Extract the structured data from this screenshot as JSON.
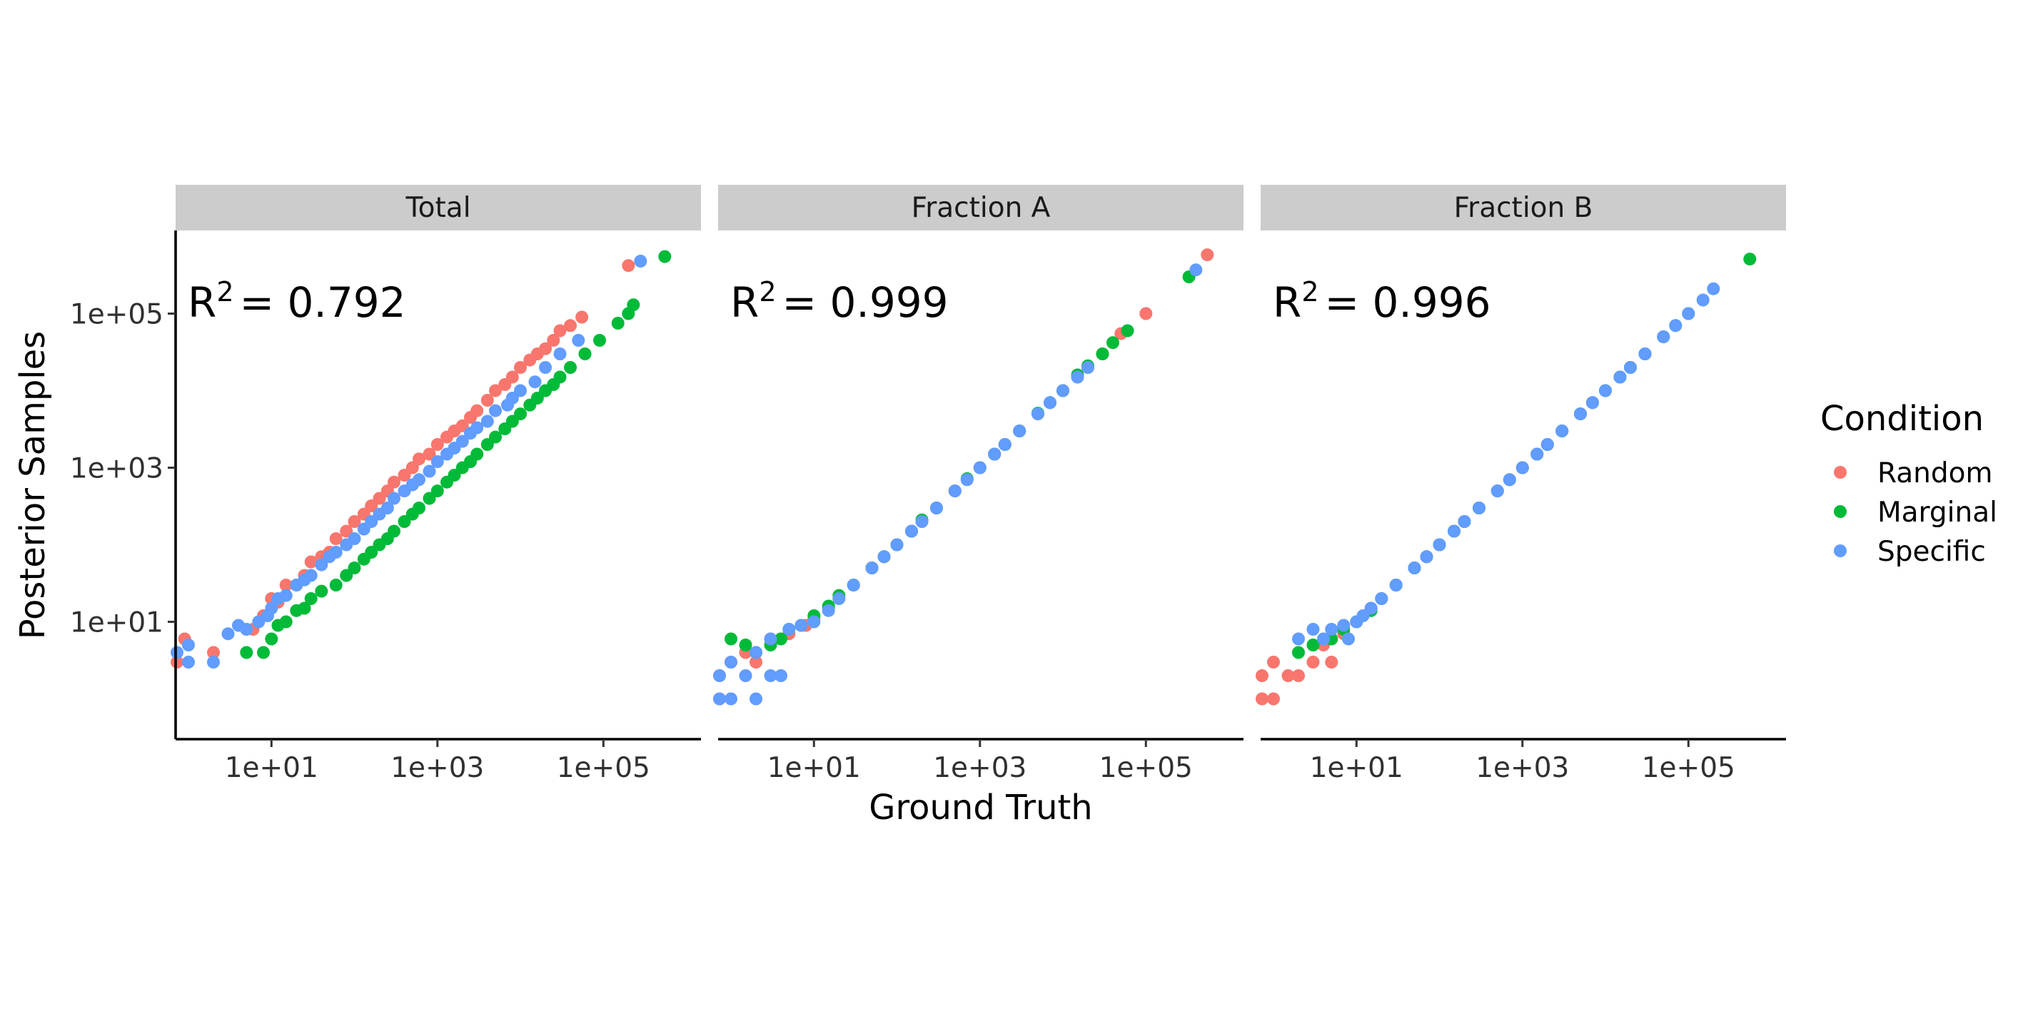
{
  "chart_data": {
    "type": "scatter",
    "facet_by": "Fraction",
    "x_scale": "log10",
    "y_scale": "log10",
    "xlabel": "Ground Truth",
    "ylabel": "Posterior Samples",
    "xlim": [
      0.7,
      1500000
    ],
    "ylim": [
      0.3,
      1200000
    ],
    "x_ticks": [
      10,
      1000,
      100000
    ],
    "x_tick_labels": [
      "1e+01",
      "1e+03",
      "1e+05"
    ],
    "y_ticks": [
      10,
      1000,
      100000
    ],
    "y_tick_labels": [
      "1e+01",
      "1e+03",
      "1e+05"
    ],
    "grid": false,
    "legend": {
      "title": "Condition",
      "position": "right",
      "entries": [
        {
          "label": "Random",
          "color": "#F8766D"
        },
        {
          "label": "Marginal",
          "color": "#00BA38"
        },
        {
          "label": "Specific",
          "color": "#619CFF"
        }
      ]
    },
    "panels": [
      {
        "title": "Total",
        "r2_label": "R",
        "r2_sup": "2",
        "r2_value": "= 0.792",
        "series": [
          {
            "name": "Random",
            "color": "#F8766D",
            "x": [
              0.7,
              0.9,
              2,
              6,
              8,
              10,
              12,
              15,
              20,
              25,
              30,
              40,
              50,
              60,
              80,
              100,
              130,
              160,
              200,
              250,
              300,
              400,
              500,
              600,
              800,
              1000,
              1300,
              1600,
              2000,
              2500,
              3000,
              4000,
              5000,
              6500,
              8000,
              10000,
              13000,
              16000,
              20000,
              25000,
              30000,
              40000,
              55000,
              200000
            ],
            "y": [
              3,
              6,
              4,
              8,
              12,
              20,
              18,
              30,
              30,
              40,
              60,
              70,
              80,
              120,
              150,
              200,
              250,
              320,
              400,
              500,
              650,
              800,
              1000,
              1300,
              1500,
              2000,
              2500,
              3000,
              3500,
              4500,
              5500,
              7500,
              10000,
              12000,
              15000,
              20000,
              25000,
              30000,
              35000,
              45000,
              60000,
              70000,
              90000,
              420000
            ]
          },
          {
            "name": "Marginal",
            "color": "#00BA38",
            "x": [
              5,
              8,
              10,
              12,
              15,
              20,
              25,
              30,
              40,
              60,
              80,
              100,
              130,
              160,
              200,
              250,
              300,
              400,
              500,
              600,
              800,
              1000,
              1300,
              1600,
              2000,
              2500,
              3000,
              4000,
              5000,
              6500,
              8000,
              10000,
              13000,
              16000,
              20000,
              25000,
              30000,
              40000,
              60000,
              90000,
              150000,
              200000,
              230000,
              550000
            ],
            "y": [
              4,
              4,
              6,
              9,
              10,
              14,
              15,
              20,
              25,
              30,
              40,
              50,
              65,
              80,
              100,
              120,
              150,
              200,
              250,
              300,
              400,
              500,
              650,
              800,
              1000,
              1200,
              1500,
              2000,
              2500,
              3200,
              4000,
              5000,
              6500,
              8000,
              10000,
              12000,
              15000,
              20000,
              30000,
              45000,
              75000,
              100000,
              130000,
              550000
            ]
          },
          {
            "name": "Specific",
            "color": "#619CFF",
            "x": [
              0.7,
              1,
              1,
              2,
              3,
              4,
              5,
              7,
              9,
              10,
              12,
              15,
              20,
              25,
              30,
              40,
              50,
              60,
              80,
              100,
              130,
              160,
              200,
              250,
              300,
              400,
              500,
              600,
              800,
              1000,
              1300,
              1600,
              2000,
              2500,
              3000,
              4000,
              5000,
              7000,
              8000,
              10000,
              15000,
              20000,
              30000,
              50000,
              280000
            ],
            "y": [
              4,
              3,
              5,
              3,
              7,
              9,
              8,
              10,
              12,
              15,
              20,
              22,
              30,
              35,
              40,
              55,
              70,
              80,
              100,
              120,
              160,
              200,
              250,
              300,
              400,
              500,
              600,
              700,
              900,
              1200,
              1500,
              1800,
              2200,
              2800,
              3300,
              4000,
              5500,
              6500,
              8000,
              10000,
              13000,
              20000,
              30000,
              45000,
              480000
            ]
          }
        ]
      },
      {
        "title": "Fraction A",
        "r2_label": "R",
        "r2_sup": "2",
        "r2_value": "= 0.999",
        "series": [
          {
            "name": "Random",
            "color": "#F8766D",
            "x": [
              0.7,
              0.7,
              1,
              1.5,
              2,
              3,
              5,
              8,
              10,
              15,
              20,
              30,
              50,
              70,
              100,
              150,
              200,
              300,
              500,
              700,
              1000,
              1500,
              2000,
              3000,
              5000,
              7000,
              10000,
              15000,
              20000,
              30000,
              50000,
              100000,
              550000
            ],
            "y": [
              2,
              1,
              3,
              4,
              3,
              6,
              7,
              9,
              11,
              15,
              20,
              30,
              50,
              70,
              100,
              150,
              200,
              300,
              500,
              700,
              1000,
              1500,
              2000,
              3000,
              5000,
              7000,
              10000,
              15000,
              20000,
              30000,
              55000,
              100000,
              580000
            ]
          },
          {
            "name": "Marginal",
            "color": "#00BA38",
            "x": [
              1,
              1.5,
              2,
              3,
              4,
              5,
              7,
              10,
              15,
              20,
              30,
              50,
              70,
              100,
              150,
              200,
              300,
              500,
              700,
              1000,
              1500,
              2000,
              3000,
              5000,
              7000,
              10000,
              15000,
              20000,
              30000,
              40000,
              60000,
              330000
            ],
            "y": [
              6,
              5,
              4,
              5,
              6,
              8,
              9,
              12,
              16,
              22,
              30,
              50,
              70,
              100,
              150,
              210,
              300,
              500,
              720,
              1000,
              1500,
              2000,
              3000,
              5100,
              7000,
              10000,
              16000,
              21000,
              30000,
              42000,
              60000,
              300000
            ]
          },
          {
            "name": "Specific",
            "color": "#619CFF",
            "x": [
              0.7,
              0.7,
              1,
              1,
              1.5,
              2,
              2,
              3,
              3,
              4,
              5,
              7,
              10,
              15,
              20,
              30,
              50,
              70,
              100,
              150,
              200,
              300,
              500,
              700,
              1000,
              1500,
              2000,
              3000,
              5000,
              7000,
              10000,
              15000,
              20000,
              400000
            ],
            "y": [
              2,
              1,
              3,
              1,
              2,
              4,
              1,
              6,
              2,
              2,
              8,
              9,
              10,
              14,
              20,
              30,
              50,
              70,
              100,
              150,
              200,
              300,
              500,
              700,
              1000,
              1500,
              2000,
              3000,
              5000,
              7000,
              10000,
              15000,
              20000,
              370000
            ]
          }
        ]
      },
      {
        "title": "Fraction B",
        "r2_label": "R",
        "r2_sup": "2",
        "r2_value": "= 0.996",
        "series": [
          {
            "name": "Random",
            "color": "#F8766D",
            "x": [
              0.7,
              0.7,
              1,
              1,
              1.5,
              2,
              3,
              4,
              5,
              7,
              10,
              15,
              20,
              30,
              50,
              70,
              100,
              150,
              200,
              300,
              500,
              700,
              1000,
              1500,
              2000,
              3000,
              5000,
              7000,
              10000,
              15000,
              20000,
              30000,
              50000
            ],
            "y": [
              2,
              1,
              3,
              1,
              2,
              2,
              3,
              5,
              3,
              7,
              10,
              15,
              20,
              30,
              50,
              70,
              100,
              150,
              200,
              300,
              500,
              700,
              1000,
              1500,
              2000,
              3000,
              5000,
              7000,
              10000,
              15000,
              20000,
              30000,
              50000
            ]
          },
          {
            "name": "Marginal",
            "color": "#00BA38",
            "x": [
              2,
              3,
              5,
              7,
              10,
              15,
              20,
              30,
              50,
              70,
              100,
              150,
              200,
              300,
              500,
              700,
              1000,
              1500,
              2000,
              3000,
              5000,
              7000,
              10000,
              15000,
              20000,
              30000,
              50000,
              70000,
              100000,
              550000
            ],
            "y": [
              4,
              5,
              6,
              8,
              10,
              14,
              20,
              30,
              50,
              70,
              100,
              150,
              200,
              300,
              500,
              700,
              1000,
              1500,
              2000,
              3000,
              5000,
              7000,
              10000,
              15000,
              20000,
              30000,
              50000,
              70000,
              100000,
              510000
            ]
          },
          {
            "name": "Specific",
            "color": "#619CFF",
            "x": [
              2,
              3,
              4,
              5,
              7,
              8,
              10,
              12,
              15,
              20,
              30,
              50,
              70,
              100,
              150,
              200,
              300,
              500,
              700,
              1000,
              1500,
              2000,
              3000,
              5000,
              7000,
              10000,
              15000,
              20000,
              30000,
              50000,
              70000,
              100000,
              150000,
              200000
            ],
            "y": [
              6,
              8,
              6,
              8,
              9,
              6,
              10,
              12,
              15,
              20,
              30,
              50,
              70,
              100,
              150,
              200,
              300,
              500,
              700,
              1000,
              1500,
              2000,
              3000,
              5000,
              7000,
              10000,
              15000,
              20000,
              30000,
              50000,
              70000,
              100000,
              150000,
              210000
            ]
          }
        ]
      }
    ]
  }
}
